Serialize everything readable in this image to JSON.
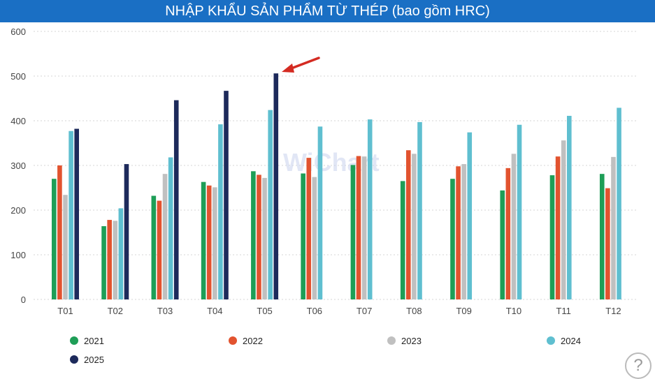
{
  "title": "NHẬP KHẨU SẢN PHẨM TỪ THÉP (bao gồm HRC)",
  "watermark": "WiChart",
  "help_label": "?",
  "chart_data": {
    "type": "bar",
    "title": "NHẬP KHẨU SẢN PHẨM TỪ THÉP (bao gồm HRC)",
    "categories": [
      "T01",
      "T02",
      "T03",
      "T04",
      "T05",
      "T06",
      "T07",
      "T08",
      "T09",
      "T10",
      "T11",
      "T12"
    ],
    "ylim": [
      0,
      600
    ],
    "yticks": [
      0,
      100,
      200,
      300,
      400,
      500,
      600
    ],
    "grid": true,
    "legend_position": "bottom",
    "annotation": "red arrow pointing at the 2025 T05 bar",
    "series": [
      {
        "name": "2021",
        "color": "#1e9e57",
        "values": [
          270,
          164,
          232,
          263,
          287,
          282,
          301,
          265,
          270,
          244,
          278,
          281
        ]
      },
      {
        "name": "2022",
        "color": "#e2532f",
        "values": [
          300,
          178,
          221,
          255,
          279,
          317,
          321,
          334,
          298,
          294,
          320,
          249
        ]
      },
      {
        "name": "2023",
        "color": "#c0c0c0",
        "values": [
          234,
          176,
          281,
          251,
          272,
          274,
          320,
          326,
          303,
          326,
          356,
          319
        ]
      },
      {
        "name": "2024",
        "color": "#5fbfd0",
        "values": [
          377,
          204,
          318,
          392,
          424,
          387,
          403,
          397,
          374,
          391,
          411,
          429
        ]
      },
      {
        "name": "2025",
        "color": "#1d2a5b",
        "values": [
          382,
          303,
          446,
          467,
          506,
          null,
          null,
          null,
          null,
          null,
          null,
          null
        ]
      }
    ]
  }
}
